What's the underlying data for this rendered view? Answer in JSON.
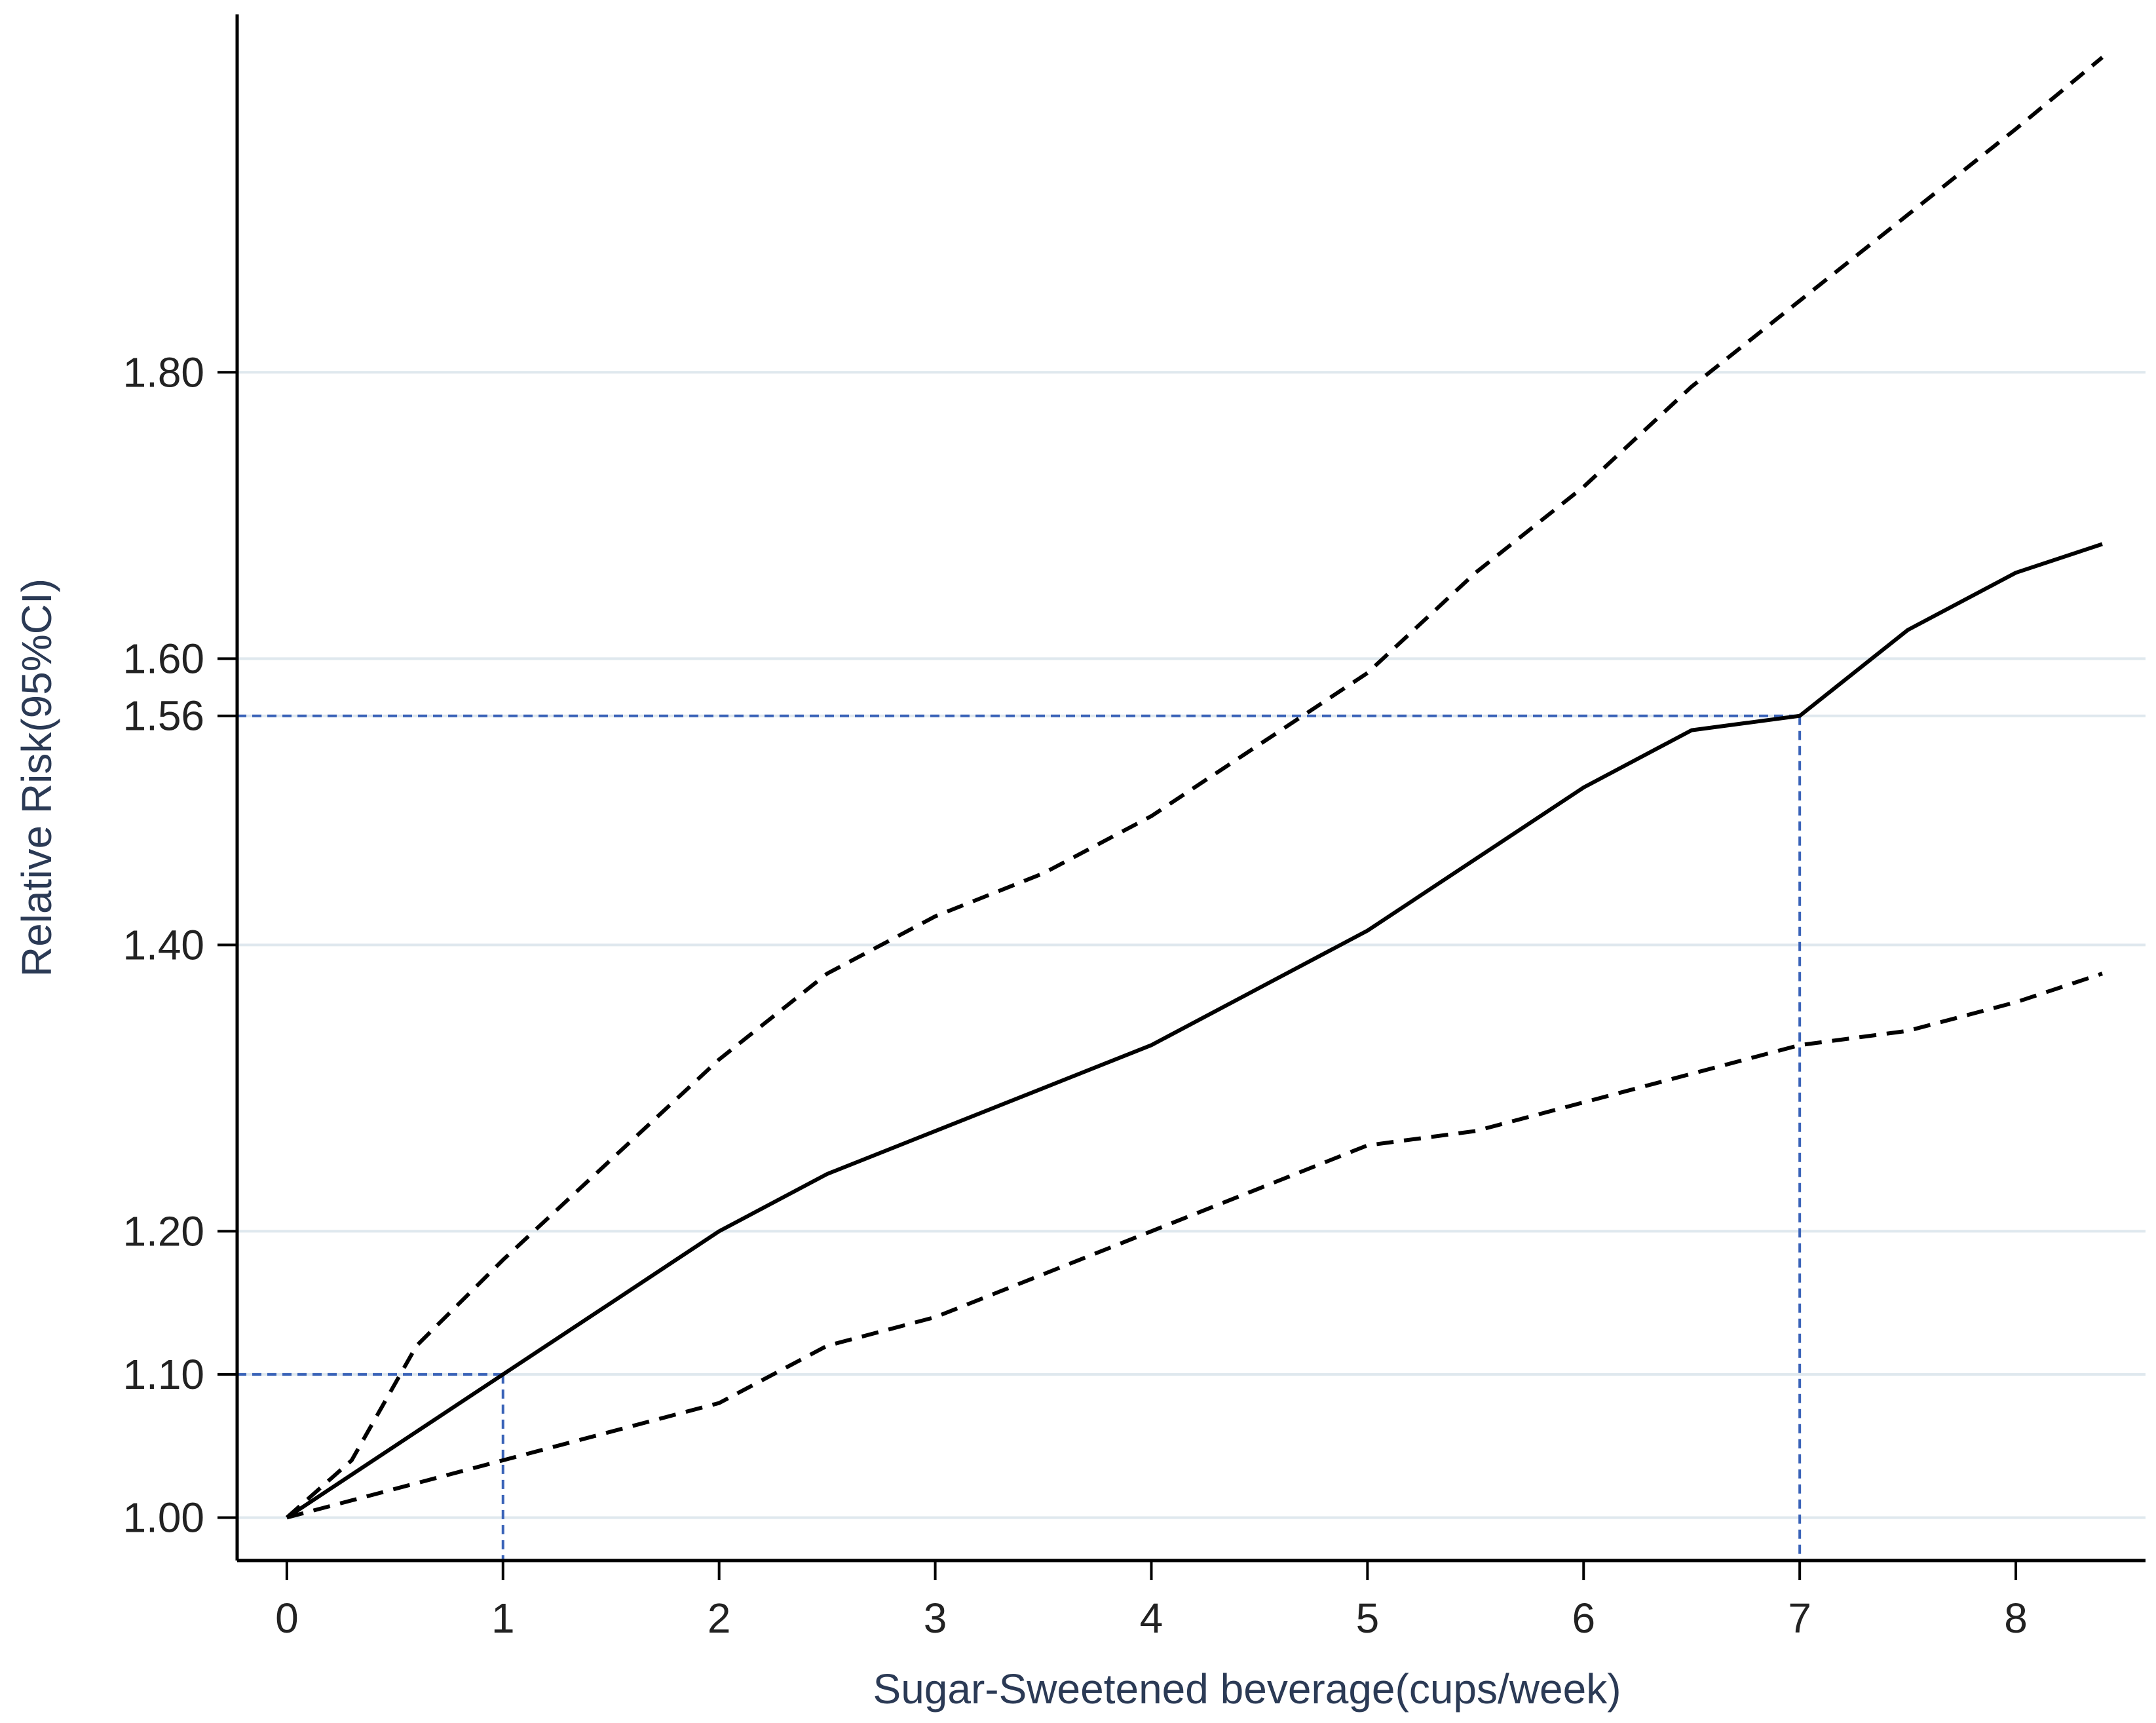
{
  "chart_data": {
    "type": "line",
    "title": "",
    "xlabel": "Sugar-Sweetened beverage(cups/week)",
    "ylabel": "Relative Risk(95%CI)",
    "xlim": [
      -0.23,
      8.6
    ],
    "ylim": [
      0.97,
      2.05
    ],
    "x_ticks": [
      0,
      1,
      2,
      3,
      4,
      5,
      6,
      7,
      8
    ],
    "y_ticks": [
      1.0,
      1.1,
      1.2,
      1.4,
      1.56,
      1.6,
      1.8
    ],
    "y_tick_labels": [
      "1.00",
      "1.10",
      "1.20",
      "1.40",
      "1.56",
      "1.60",
      "1.80"
    ],
    "grid": true,
    "colors": {
      "main": "#000000",
      "ci": "#000000",
      "reference": "#3a63b8",
      "grid": "#dfe8ee"
    },
    "series": [
      {
        "role": "estimate",
        "style": "solid",
        "points": [
          [
            0,
            1.0
          ],
          [
            0.5,
            1.05
          ],
          [
            1,
            1.1
          ],
          [
            1.5,
            1.15
          ],
          [
            2,
            1.2
          ],
          [
            2.5,
            1.24
          ],
          [
            3,
            1.27
          ],
          [
            3.5,
            1.3
          ],
          [
            4,
            1.33
          ],
          [
            4.5,
            1.37
          ],
          [
            5,
            1.41
          ],
          [
            5.5,
            1.46
          ],
          [
            6,
            1.51
          ],
          [
            6.5,
            1.55
          ],
          [
            7,
            1.56
          ],
          [
            7.5,
            1.62
          ],
          [
            8,
            1.66
          ],
          [
            8.4,
            1.68
          ]
        ]
      },
      {
        "role": "upper-ci",
        "style": "dashed",
        "points": [
          [
            0,
            1.0
          ],
          [
            0.3,
            1.04
          ],
          [
            0.6,
            1.12
          ],
          [
            1,
            1.18
          ],
          [
            1.5,
            1.25
          ],
          [
            2,
            1.32
          ],
          [
            2.5,
            1.38
          ],
          [
            3,
            1.42
          ],
          [
            3.5,
            1.45
          ],
          [
            4,
            1.49
          ],
          [
            4.5,
            1.54
          ],
          [
            5,
            1.59
          ],
          [
            5.5,
            1.66
          ],
          [
            6,
            1.72
          ],
          [
            6.5,
            1.79
          ],
          [
            7,
            1.85
          ],
          [
            7.5,
            1.91
          ],
          [
            8,
            1.97
          ],
          [
            8.4,
            2.02
          ]
        ]
      },
      {
        "role": "lower-ci",
        "style": "dashed",
        "points": [
          [
            0,
            1.0
          ],
          [
            0.5,
            1.02
          ],
          [
            1,
            1.04
          ],
          [
            1.5,
            1.06
          ],
          [
            2,
            1.08
          ],
          [
            2.5,
            1.12
          ],
          [
            3,
            1.14
          ],
          [
            3.5,
            1.17
          ],
          [
            4,
            1.2
          ],
          [
            4.5,
            1.23
          ],
          [
            5,
            1.26
          ],
          [
            5.5,
            1.27
          ],
          [
            6,
            1.29
          ],
          [
            6.5,
            1.31
          ],
          [
            7,
            1.33
          ],
          [
            7.5,
            1.34
          ],
          [
            8,
            1.36
          ],
          [
            8.4,
            1.38
          ]
        ]
      }
    ],
    "reference_lines": [
      {
        "x": 1,
        "y": 1.1
      },
      {
        "x": 7,
        "y": 1.56
      }
    ]
  }
}
